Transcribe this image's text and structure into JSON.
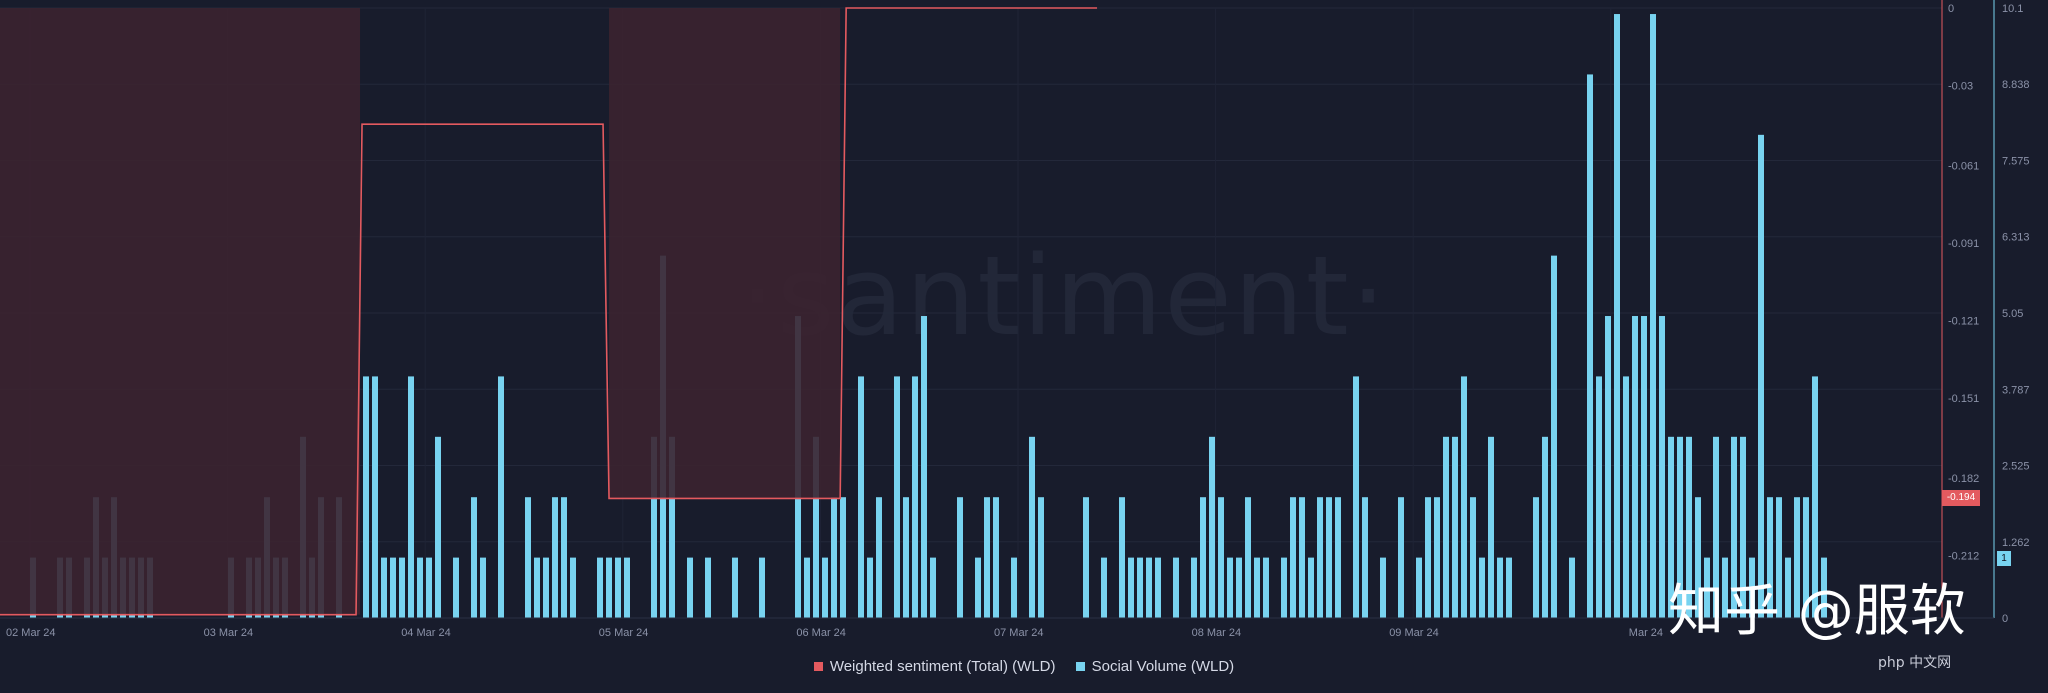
{
  "watermark": "·santiment·",
  "credit": "知乎 @服软",
  "php_logo": "php 中文网",
  "colors": {
    "sentiment": "#e35a5f",
    "sentiment_fill": "#3b2330",
    "volume": "#78d3f0",
    "background": "#181c2c"
  },
  "chart_data": {
    "type": "bar",
    "title": "",
    "x_ticks": [
      "02 Mar 24",
      "03 Mar 24",
      "04 Mar 24",
      "05 Mar 24",
      "06 Mar 24",
      "07 Mar 24",
      "08 Mar 24",
      "09 Mar 24",
      "Mar 24"
    ],
    "y_left": {
      "ticks": [
        "0",
        "-0.03",
        "-0.061",
        "-0.091",
        "-0.121",
        "-0.151",
        "-0.182",
        "-0.212"
      ],
      "range": [
        -0.2363,
        0
      ],
      "current_label": "-0.194"
    },
    "y_right": {
      "ticks": [
        "0",
        "1.262",
        "2.525",
        "3.787",
        "5.05",
        "6.313",
        "7.575",
        "8.838",
        "10.1"
      ],
      "range": [
        0,
        10.1
      ],
      "current_label": "1"
    },
    "legend": [
      "Weighted sentiment (Total) (WLD)",
      "Social Volume (WLD)"
    ],
    "series": [
      {
        "name": "Weighted sentiment (Total) (WLD)",
        "type": "step-area",
        "steps": [
          {
            "x_start": 0.0,
            "x_end": 1.65,
            "value": -0.235
          },
          {
            "x_start": 1.65,
            "x_end": 2.9,
            "value": -0.045
          },
          {
            "x_start": 2.9,
            "x_end": 4.1,
            "value": -0.19
          },
          {
            "x_start": 4.1,
            "x_end": 5.4,
            "value": 0.0
          }
        ]
      },
      {
        "name": "Social Volume (WLD)",
        "type": "bar",
        "values": [
          1,
          0,
          0,
          1,
          1,
          0,
          1,
          2,
          1,
          2,
          1,
          1,
          1,
          1,
          0,
          0,
          0,
          0,
          0,
          0,
          0,
          0,
          1,
          0,
          1,
          1,
          2,
          1,
          1,
          0,
          3,
          1,
          2,
          0,
          2,
          0,
          0,
          4,
          4,
          1,
          1,
          1,
          4,
          1,
          1,
          3,
          0,
          1,
          0,
          2,
          1,
          0,
          4,
          0,
          0,
          2,
          1,
          1,
          2,
          2,
          1,
          0,
          0,
          1,
          1,
          1,
          1,
          0,
          0,
          3,
          6,
          3,
          0,
          1,
          0,
          1,
          0,
          0,
          1,
          0,
          0,
          1,
          0,
          0,
          0,
          5,
          1,
          3,
          1,
          2,
          2,
          0,
          4,
          1,
          2,
          0,
          4,
          2,
          4,
          5,
          1,
          0,
          0,
          2,
          0,
          1,
          2,
          2,
          0,
          1,
          0,
          3,
          2,
          0,
          0,
          0,
          0,
          2,
          0,
          1,
          0,
          2,
          1,
          1,
          1,
          1,
          0,
          1,
          0,
          1,
          2,
          3,
          2,
          1,
          1,
          2,
          1,
          1,
          0,
          1,
          2,
          2,
          1,
          2,
          2,
          2,
          0,
          4,
          2,
          0,
          1,
          0,
          2,
          0,
          1,
          2,
          2,
          3,
          3,
          4,
          2,
          1,
          3,
          1,
          1,
          0,
          0,
          2,
          3,
          6,
          0,
          1,
          0,
          9,
          4,
          5,
          10,
          4,
          5,
          5,
          10,
          5,
          3,
          3,
          3,
          2,
          1,
          3,
          1,
          3,
          3,
          1,
          8,
          2,
          2,
          1,
          2,
          2,
          4,
          1,
          0,
          0,
          0
        ]
      }
    ]
  }
}
